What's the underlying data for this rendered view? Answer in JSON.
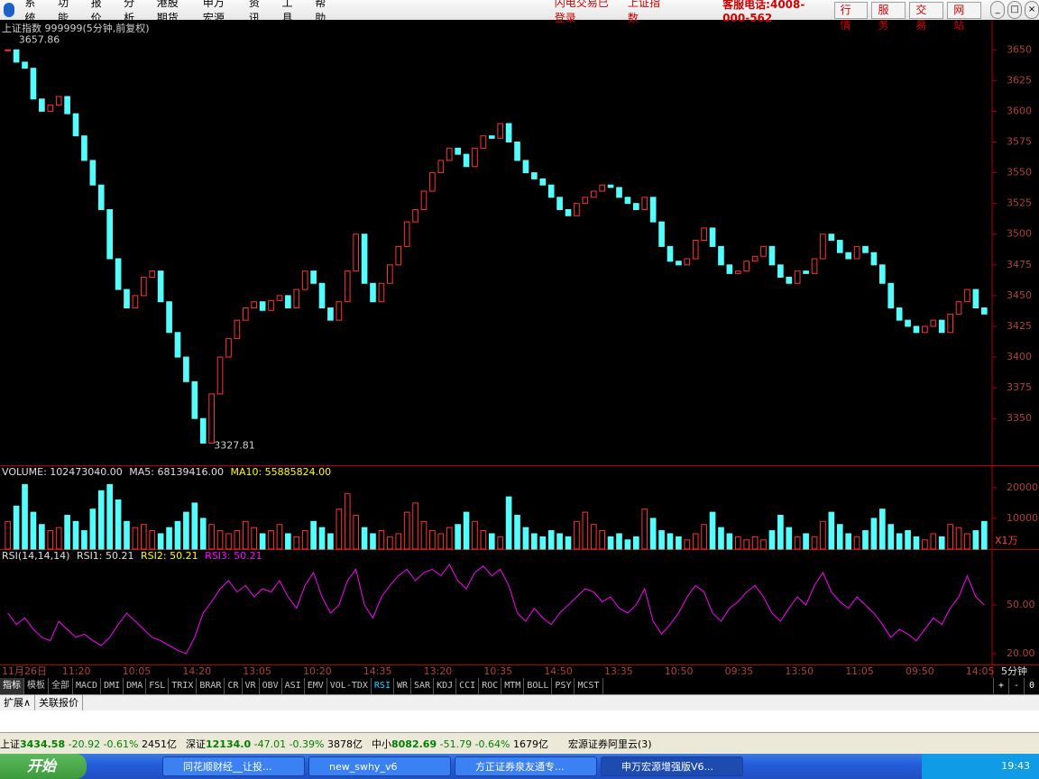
{
  "menu": {
    "items": [
      "系统",
      "功能",
      "报价",
      "分析",
      "港股期货",
      "申万宏源",
      "资讯",
      "工具",
      "帮助"
    ],
    "login": "闪电交易已登录",
    "index": "上证指数",
    "hotline": "客服电话:4008-000-562",
    "buttons": [
      "行情",
      "服务",
      "交易",
      "网站"
    ]
  },
  "chart_data": [
    {
      "type": "candlestick",
      "title": "上证指数 999999(5分钟,前复权)",
      "high": 3657.86,
      "low": 3327.81,
      "values": [
        3650,
        3640,
        3635,
        3610,
        3600,
        3605,
        3612,
        3598,
        3580,
        3560,
        3540,
        3520,
        3480,
        3455,
        3440,
        3450,
        3465,
        3470,
        3445,
        3420,
        3400,
        3380,
        3350,
        3330,
        3370,
        3400,
        3415,
        3430,
        3440,
        3445,
        3438,
        3446,
        3450,
        3440,
        3455,
        3470,
        3460,
        3440,
        3430,
        3445,
        3470,
        3500,
        3460,
        3445,
        3460,
        3475,
        3490,
        3510,
        3520,
        3535,
        3550,
        3560,
        3570,
        3565,
        3555,
        3570,
        3580,
        3578,
        3590,
        3575,
        3560,
        3550,
        3545,
        3540,
        3530,
        3520,
        3515,
        3525,
        3530,
        3535,
        3540,
        3538,
        3530,
        3525,
        3520,
        3530,
        3510,
        3490,
        3478,
        3475,
        3480,
        3495,
        3505,
        3490,
        3475,
        3468,
        3470,
        3478,
        3482,
        3490,
        3475,
        3465,
        3460,
        3470,
        3468,
        3480,
        3500,
        3495,
        3485,
        3480,
        3490,
        3485,
        3475,
        3460,
        3440,
        3430,
        3425,
        3420,
        3425,
        3430,
        3420,
        3435,
        3445,
        3455,
        3440,
        3435
      ],
      "up_color": "#ff3232",
      "down_color": "#54fcfc",
      "ylim": [
        3312,
        3670
      ],
      "yticks": [
        3350,
        3375,
        3400,
        3425,
        3450,
        3475,
        3500,
        3525,
        3550,
        3575,
        3600,
        3625,
        3650
      ]
    },
    {
      "type": "bar",
      "title": "VOLUME: 102473040.00",
      "ma5": "MA5: 68139416.00",
      "ma10": "MA10: 55885824.00",
      "unit": "X1万",
      "values": [
        9000,
        14000,
        21000,
        12000,
        8000,
        6000,
        7000,
        11000,
        9000,
        6000,
        13000,
        19000,
        21000,
        16000,
        9000,
        7000,
        8000,
        6000,
        5000,
        7000,
        9000,
        12000,
        15000,
        10000,
        8000,
        6000,
        5000,
        6000,
        9000,
        7000,
        5000,
        6000,
        8000,
        5000,
        4000,
        6000,
        9000,
        7000,
        5000,
        13000,
        18000,
        11000,
        7000,
        5000,
        6000,
        4000,
        5000,
        12000,
        15000,
        9000,
        6000,
        5000,
        7000,
        8000,
        12000,
        9000,
        6000,
        5000,
        4000,
        17000,
        11000,
        7000,
        5000,
        4000,
        6000,
        5000,
        4000,
        9000,
        12000,
        8000,
        6000,
        4000,
        5000,
        3000,
        4000,
        13000,
        10000,
        6000,
        5000,
        4000,
        3000,
        5000,
        8000,
        12000,
        7000,
        5000,
        4000,
        3000,
        4000,
        3000,
        6000,
        11000,
        7000,
        4000,
        5000,
        4000,
        9000,
        12000,
        8000,
        5000,
        4000,
        6000,
        10000,
        13000,
        8000,
        5000,
        6000,
        4000,
        3000,
        5000,
        4000,
        8000,
        7000,
        5000,
        6000,
        9000
      ],
      "ylim": [
        0,
        27000
      ],
      "yticks": [
        10000,
        20000
      ]
    },
    {
      "type": "line",
      "title": "RSI(14,14,14)",
      "rsi1": "RSI1: 50.21",
      "rsi2": "RSI2: 50.21",
      "rsi3": "RSI3: 50.21",
      "color": "#ff00ff",
      "values": [
        45,
        38,
        42,
        35,
        30,
        28,
        40,
        35,
        30,
        32,
        28,
        25,
        30,
        38,
        45,
        40,
        35,
        30,
        28,
        25,
        22,
        20,
        30,
        45,
        52,
        60,
        65,
        58,
        62,
        55,
        60,
        58,
        65,
        55,
        48,
        62,
        70,
        55,
        45,
        50,
        65,
        72,
        50,
        42,
        55,
        62,
        68,
        72,
        65,
        70,
        72,
        68,
        75,
        65,
        60,
        70,
        74,
        68,
        72,
        62,
        45,
        40,
        48,
        42,
        38,
        45,
        50,
        55,
        60,
        58,
        52,
        55,
        48,
        45,
        50,
        60,
        40,
        32,
        38,
        45,
        55,
        62,
        58,
        45,
        40,
        48,
        52,
        58,
        62,
        55,
        45,
        40,
        48,
        55,
        50,
        62,
        70,
        58,
        52,
        48,
        55,
        50,
        45,
        38,
        30,
        35,
        32,
        28,
        35,
        42,
        38,
        48,
        55,
        68,
        55,
        50
      ],
      "ylim": [
        13.3,
        83.9
      ],
      "yticks": [
        {
          "value": 20,
          "label": "20.00"
        },
        {
          "value": 50,
          "label": "50.00"
        }
      ]
    }
  ],
  "time_axis": {
    "labels": [
      "11月26日",
      "11:20",
      "10:05",
      "14:20",
      "13:05",
      "10:20",
      "14:35",
      "13:20",
      "10:35",
      "14:50",
      "13:35",
      "10:50",
      "09:35",
      "13:50",
      "11:05",
      "09:50",
      "14:05"
    ],
    "unit": "5分钟"
  },
  "tabs": {
    "items": [
      "指标",
      "模板",
      "全部",
      "MACD",
      "DMI",
      "DMA",
      "FSL",
      "TRIX",
      "BRAR",
      "CR",
      "VR",
      "OBV",
      "ASI",
      "EMV",
      "VOL-TDX",
      "RSI",
      "WR",
      "SAR",
      "KDJ",
      "CCI",
      "ROC",
      "MTM",
      "BOLL",
      "PSY",
      "MCST"
    ],
    "controls": [
      "+",
      "-",
      "0"
    ]
  },
  "subtabs": [
    "扩展∧",
    "关联报价"
  ],
  "status": {
    "markets": [
      {
        "name": "上证",
        "price": "3434.58",
        "change": "-20.92",
        "pct": "-0.61%",
        "amount": "2451亿"
      },
      {
        "name": "深证",
        "price": "12134.0",
        "change": "-47.01",
        "pct": "-0.39%",
        "amount": "3878亿"
      },
      {
        "name": "中小",
        "price": "8082.69",
        "change": "-51.79",
        "pct": "-0.64%",
        "amount": "1679亿"
      }
    ],
    "broker": "宏源证券阿里云(3)"
  },
  "taskbar": {
    "start": "开始",
    "tasks": [
      "同花顺财经__让投...",
      "new_swhy_v6",
      "方正证券泉友通专...",
      "申万宏源增强版V6..."
    ],
    "clock": "19:43"
  }
}
